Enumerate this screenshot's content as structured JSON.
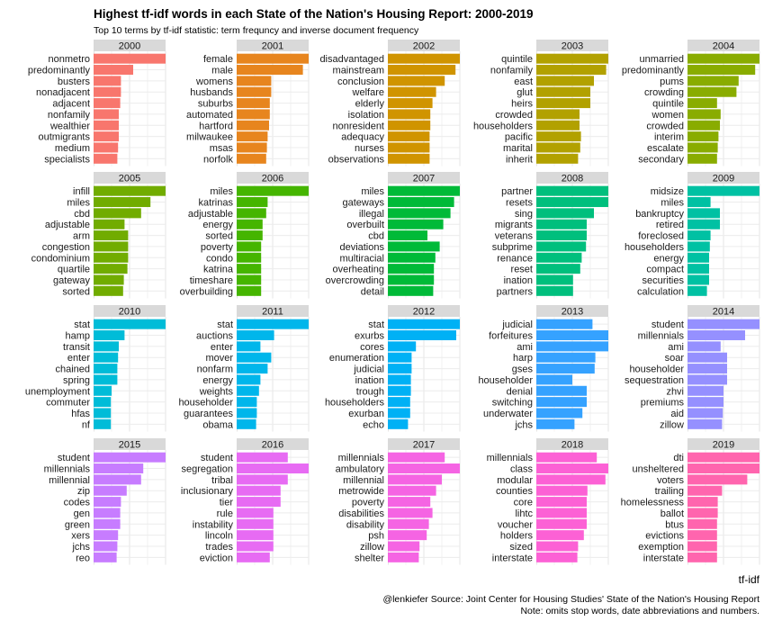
{
  "chart_data": {
    "type": "bar",
    "title": "Highest tf-idf words in each State of the Nation's Housing Report: 2000-2019",
    "subtitle": "Top 10 terms by tf-idf statistic: term frequncy and inverse document frequency",
    "xlabel": "tf-idf",
    "caption": [
      "@lenkiefer Source: Joint Center for Housing Studies' State of the Nation's Housing Report",
      "Note: omits stop words, date abbreviations and numbers."
    ],
    "grid": true,
    "facets": [
      {
        "year": "2000",
        "color": "#F8766D",
        "terms": [
          "nonmetro",
          "predominantly",
          "busters",
          "nonadjacent",
          "adjacent",
          "nonfamily",
          "wealthier",
          "outmigrants",
          "medium",
          "specialists"
        ],
        "values": [
          1.0,
          0.55,
          0.38,
          0.38,
          0.37,
          0.35,
          0.35,
          0.35,
          0.34,
          0.33
        ]
      },
      {
        "year": "2001",
        "color": "#E7851E",
        "terms": [
          "female",
          "male",
          "womens",
          "husbands",
          "suburbs",
          "automated",
          "hartford",
          "milwaukee",
          "msas",
          "norfolk"
        ],
        "values": [
          1.0,
          0.92,
          0.48,
          0.48,
          0.46,
          0.46,
          0.45,
          0.43,
          0.42,
          0.41
        ]
      },
      {
        "year": "2002",
        "color": "#D09400",
        "terms": [
          "disadvantaged",
          "mainstream",
          "conclusion",
          "welfare",
          "elderly",
          "isolation",
          "nonresident",
          "adequacy",
          "nurses",
          "observations"
        ],
        "values": [
          1.0,
          0.94,
          0.79,
          0.67,
          0.62,
          0.59,
          0.59,
          0.58,
          0.58,
          0.58
        ]
      },
      {
        "year": "2003",
        "color": "#B2A100",
        "terms": [
          "quintile",
          "nonfamily",
          "east",
          "glut",
          "heirs",
          "crowded",
          "householders",
          "pacific",
          "marital",
          "inherit"
        ],
        "values": [
          1.0,
          0.97,
          0.8,
          0.75,
          0.75,
          0.6,
          0.6,
          0.62,
          0.61,
          0.58
        ]
      },
      {
        "year": "2004",
        "color": "#89AC00",
        "terms": [
          "unmarried",
          "predominantly",
          "pums",
          "crowding",
          "quintile",
          "women",
          "crowded",
          "interim",
          "escalate",
          "secondary"
        ],
        "values": [
          1.0,
          0.94,
          0.71,
          0.68,
          0.41,
          0.46,
          0.45,
          0.43,
          0.42,
          0.41
        ]
      },
      {
        "year": "2005",
        "color": "#71AC00",
        "terms": [
          "infill",
          "miles",
          "cbd",
          "adjustable",
          "arm",
          "congestion",
          "condominium",
          "quartile",
          "gateway",
          "sorted"
        ],
        "values": [
          1.0,
          0.79,
          0.66,
          0.43,
          0.48,
          0.48,
          0.48,
          0.47,
          0.42,
          0.41
        ]
      },
      {
        "year": "2006",
        "color": "#45B500",
        "terms": [
          "miles",
          "katrinas",
          "adjustable",
          "energy",
          "sorted",
          "poverty",
          "condo",
          "katrina",
          "timeshare",
          "overbuilding"
        ],
        "values": [
          1.0,
          0.43,
          0.41,
          0.36,
          0.36,
          0.34,
          0.34,
          0.34,
          0.34,
          0.34
        ]
      },
      {
        "year": "2007",
        "color": "#00BA38",
        "terms": [
          "miles",
          "gateways",
          "illegal",
          "overbuilt",
          "cbd",
          "deviations",
          "multiracial",
          "overheating",
          "overcrowding",
          "detail"
        ],
        "values": [
          1.0,
          0.92,
          0.87,
          0.77,
          0.55,
          0.72,
          0.66,
          0.64,
          0.64,
          0.63
        ]
      },
      {
        "year": "2008",
        "color": "#00BF7D",
        "terms": [
          "partner",
          "resets",
          "sing",
          "migrants",
          "veterans",
          "subprime",
          "renance",
          "reset",
          "ination",
          "partners"
        ],
        "values": [
          1.0,
          1.0,
          0.8,
          0.7,
          0.7,
          0.69,
          0.63,
          0.61,
          0.51,
          0.51
        ]
      },
      {
        "year": "2009",
        "color": "#00C1A3",
        "terms": [
          "midsize",
          "miles",
          "bankruptcy",
          "retired",
          "foreclosed",
          "householders",
          "energy",
          "compact",
          "securities",
          "calculation"
        ],
        "values": [
          1.0,
          0.32,
          0.45,
          0.45,
          0.32,
          0.31,
          0.3,
          0.3,
          0.3,
          0.27
        ]
      },
      {
        "year": "2010",
        "color": "#00BCD8",
        "terms": [
          "stat",
          "hamp",
          "transit",
          "enter",
          "chained",
          "spring",
          "unemployment",
          "commuter",
          "hfas",
          "nf"
        ],
        "values": [
          1.0,
          0.43,
          0.35,
          0.34,
          0.33,
          0.33,
          0.25,
          0.24,
          0.24,
          0.24
        ]
      },
      {
        "year": "2011",
        "color": "#00B6EB",
        "terms": [
          "stat",
          "auctions",
          "enter",
          "mover",
          "nonfarm",
          "energy",
          "weights",
          "householder",
          "guarantees",
          "obama"
        ],
        "values": [
          1.0,
          0.52,
          0.33,
          0.48,
          0.43,
          0.33,
          0.31,
          0.28,
          0.28,
          0.27
        ]
      },
      {
        "year": "2012",
        "color": "#00B1F5",
        "terms": [
          "stat",
          "exurbs",
          "cores",
          "enumeration",
          "judicial",
          "ination",
          "trough",
          "householders",
          "exurban",
          "echo"
        ],
        "values": [
          1.0,
          0.95,
          0.39,
          0.33,
          0.33,
          0.32,
          0.32,
          0.31,
          0.31,
          0.28
        ]
      },
      {
        "year": "2013",
        "color": "#35A2FF",
        "terms": [
          "judicial",
          "forfeitures",
          "ami",
          "harp",
          "gses",
          "householder",
          "denial",
          "switching",
          "underwater",
          "jchs"
        ],
        "values": [
          0.78,
          1.0,
          1.0,
          0.82,
          0.81,
          0.5,
          0.7,
          0.7,
          0.64,
          0.53
        ]
      },
      {
        "year": "2014",
        "color": "#9590FF",
        "terms": [
          "student",
          "millennials",
          "ami",
          "soar",
          "householder",
          "sequestration",
          "zhvi",
          "premiums",
          "aid",
          "zillow"
        ],
        "values": [
          1.0,
          0.8,
          0.46,
          0.55,
          0.55,
          0.55,
          0.5,
          0.5,
          0.49,
          0.48
        ]
      },
      {
        "year": "2015",
        "color": "#C77CFF",
        "terms": [
          "student",
          "millennials",
          "millennial",
          "zip",
          "codes",
          "gen",
          "green",
          "xers",
          "jchs",
          "reo"
        ],
        "values": [
          1.0,
          0.69,
          0.66,
          0.46,
          0.38,
          0.37,
          0.37,
          0.34,
          0.33,
          0.32
        ]
      },
      {
        "year": "2016",
        "color": "#E76BF3",
        "terms": [
          "student",
          "segregation",
          "tribal",
          "inclusionary",
          "tier",
          "rule",
          "instability",
          "lincoln",
          "trades",
          "eviction"
        ],
        "values": [
          0.71,
          1.0,
          0.71,
          0.61,
          0.61,
          0.51,
          0.51,
          0.51,
          0.51,
          0.46
        ]
      },
      {
        "year": "2017",
        "color": "#F564E3",
        "terms": [
          "millennials",
          "ambulatory",
          "millennial",
          "metrowide",
          "poverty",
          "disabilities",
          "disability",
          "psh",
          "zillow",
          "shelter"
        ],
        "values": [
          0.79,
          1.0,
          0.75,
          0.67,
          0.59,
          0.62,
          0.57,
          0.54,
          0.44,
          0.43
        ]
      },
      {
        "year": "2018",
        "color": "#FC61D5",
        "terms": [
          "millennials",
          "class",
          "modular",
          "counties",
          "core",
          "lihtc",
          "voucher",
          "holders",
          "sized",
          "interstate"
        ],
        "values": [
          0.84,
          1.0,
          0.96,
          0.71,
          0.7,
          0.7,
          0.7,
          0.66,
          0.58,
          0.57
        ]
      },
      {
        "year": "2019",
        "color": "#FF65AE",
        "terms": [
          "dti",
          "unsheltered",
          "voters",
          "trailing",
          "homelessness",
          "ballot",
          "btus",
          "evictions",
          "exemption",
          "interstate"
        ],
        "values": [
          1.0,
          1.0,
          0.83,
          0.48,
          0.42,
          0.42,
          0.41,
          0.41,
          0.41,
          0.41
        ]
      }
    ]
  }
}
